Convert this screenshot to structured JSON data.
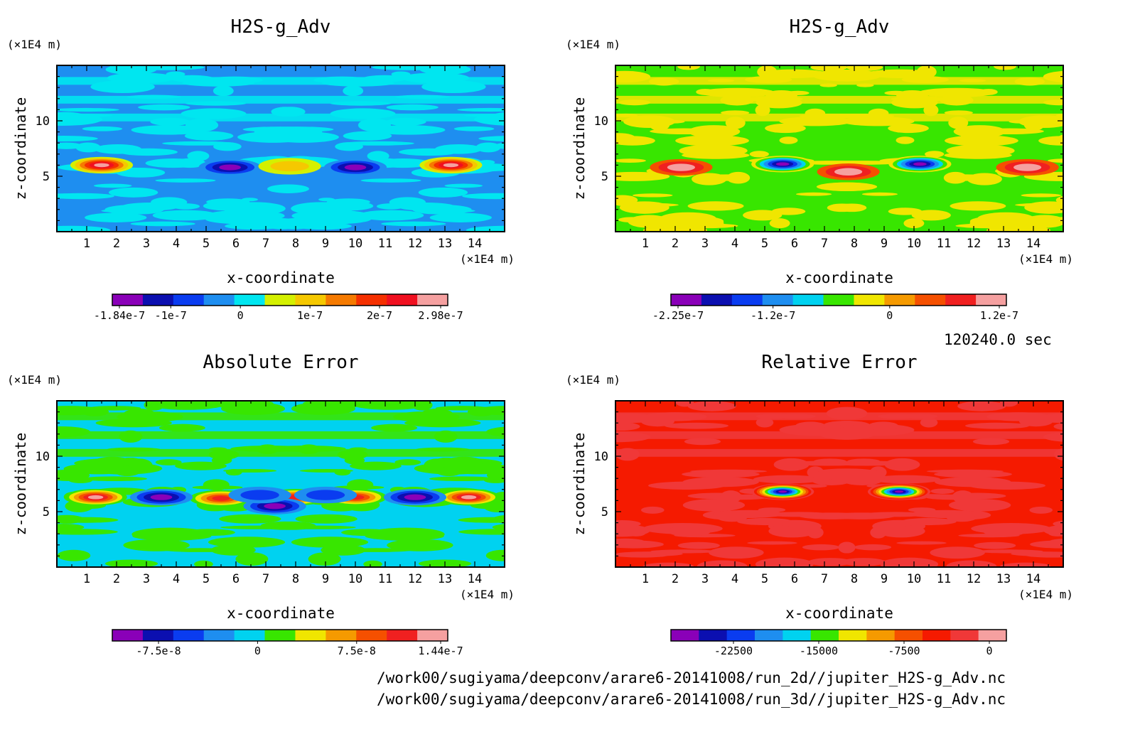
{
  "figure": {
    "time_label": "120240.0 sec",
    "files": [
      "/work00/sugiyama/deepconv/arare6-20141008/run_2d//jupiter_H2S-g_Adv.nc",
      "/work00/sugiyama/deepconv/arare6-20141008/run_3d//jupiter_H2S-g_Adv.nc"
    ]
  },
  "colors": {
    "palette": [
      "#8a00b8",
      "#0b0fb0",
      "#0a3cf0",
      "#1e8ef0",
      "#00e6f0",
      "#38e600",
      "#f0e600",
      "#f59a00",
      "#f54a00",
      "#f02020",
      "#f5a0a0"
    ]
  },
  "chart_data": [
    {
      "type": "heatmap",
      "title": "H2S-g_Adv",
      "xlabel": "x-coordinate",
      "ylabel": "z-coordinate",
      "x_unit": "(×1E4 m)",
      "y_unit": "(×1E4 m)",
      "xlim": [
        0,
        15
      ],
      "ylim": [
        0,
        15
      ],
      "x_ticks": [
        "1",
        "2",
        "3",
        "4",
        "5",
        "6",
        "7",
        "8",
        "9",
        "10",
        "11",
        "12",
        "13",
        "14"
      ],
      "y_ticks": [
        "5",
        "10"
      ],
      "colorbar_labels": [
        "-1.84e-7",
        "-1e-7",
        "0",
        "1e-7",
        "2e-7",
        "2.98e-7"
      ],
      "colorbar_range": [
        -1.84e-07,
        2.98e-07
      ],
      "colorbar_colors": [
        "#8a00b8",
        "#0b0fb0",
        "#0a3cf0",
        "#1e8ef0",
        "#00e6f0",
        "#d4f000",
        "#f5c800",
        "#f57a00",
        "#f53000",
        "#f01020",
        "#f5a0a0"
      ],
      "background_levels": [
        "#1e8ef0",
        "#00e6f0"
      ],
      "features": [
        {
          "x": 1.5,
          "z": 6.0,
          "value": 2.9e-07
        },
        {
          "x": 13.2,
          "z": 6.0,
          "value": 2.9e-07
        },
        {
          "x": 5.8,
          "z": 5.8,
          "value": -1.5e-07
        },
        {
          "x": 10.0,
          "z": 5.8,
          "value": -1.5e-07
        },
        {
          "x": 7.8,
          "z": 5.9,
          "value": 8e-08
        }
      ]
    },
    {
      "type": "heatmap",
      "title": "H2S-g_Adv",
      "xlabel": "x-coordinate",
      "ylabel": "z-coordinate",
      "x_unit": "(×1E4 m)",
      "y_unit": "(×1E4 m)",
      "xlim": [
        0,
        15
      ],
      "ylim": [
        0,
        15
      ],
      "x_ticks": [
        "1",
        "2",
        "3",
        "4",
        "5",
        "6",
        "7",
        "8",
        "9",
        "10",
        "11",
        "12",
        "13",
        "14"
      ],
      "y_ticks": [
        "5",
        "10"
      ],
      "colorbar_labels": [
        "-2.25e-7",
        "-1.2e-7",
        "0",
        "1.2e-7"
      ],
      "colorbar_range": [
        -2.25e-07,
        1.2e-07
      ],
      "colorbar_colors": [
        "#8a00b8",
        "#0b0fb0",
        "#0a3cf0",
        "#1e8ef0",
        "#00d2f0",
        "#38e600",
        "#f0e600",
        "#f59a00",
        "#f55000",
        "#f02020",
        "#f5a0a0"
      ],
      "background_levels": [
        "#38e600",
        "#f0e600"
      ],
      "features": [
        {
          "x": 2.2,
          "z": 5.8,
          "value": 1.3e-07
        },
        {
          "x": 13.8,
          "z": 5.8,
          "value": 1.3e-07
        },
        {
          "x": 7.8,
          "z": 5.4,
          "value": 1e-07
        },
        {
          "x": 5.6,
          "z": 6.1,
          "value": -2e-07
        },
        {
          "x": 10.2,
          "z": 6.1,
          "value": -2e-07
        }
      ]
    },
    {
      "type": "heatmap",
      "title": "Absolute Error",
      "xlabel": "x-coordinate",
      "ylabel": "z-coordinate",
      "x_unit": "(×1E4 m)",
      "y_unit": "(×1E4 m)",
      "xlim": [
        0,
        15
      ],
      "ylim": [
        0,
        15
      ],
      "x_ticks": [
        "1",
        "2",
        "3",
        "4",
        "5",
        "6",
        "7",
        "8",
        "9",
        "10",
        "11",
        "12",
        "13",
        "14"
      ],
      "y_ticks": [
        "5",
        "10"
      ],
      "colorbar_labels": [
        "-7.5e-8",
        "0",
        "7.5e-8",
        "1.44e-7"
      ],
      "colorbar_range": [
        -1.1e-07,
        1.44e-07
      ],
      "colorbar_colors": [
        "#8a00b8",
        "#0b0fb0",
        "#0a3cf0",
        "#1e8ef0",
        "#00d2f0",
        "#38e600",
        "#f0e600",
        "#f59a00",
        "#f55000",
        "#f02020",
        "#f5a0a0"
      ],
      "background_levels": [
        "#00d2f0",
        "#38e600"
      ],
      "features": [
        {
          "x": 1.3,
          "z": 6.3,
          "value": 1.4e-07
        },
        {
          "x": 5.5,
          "z": 6.2,
          "value": 1.1e-07
        },
        {
          "x": 8.0,
          "z": 6.3,
          "value": 1e-07
        },
        {
          "x": 10.0,
          "z": 6.3,
          "value": 1.2e-07
        },
        {
          "x": 13.8,
          "z": 6.3,
          "value": 1.4e-07
        },
        {
          "x": 3.5,
          "z": 6.3,
          "value": -9e-08
        },
        {
          "x": 12.0,
          "z": 6.3,
          "value": -9e-08
        },
        {
          "x": 7.3,
          "z": 5.5,
          "value": -9e-08
        },
        {
          "x": 6.8,
          "z": 6.5,
          "value": -6e-08
        },
        {
          "x": 9.0,
          "z": 6.5,
          "value": -6e-08
        }
      ]
    },
    {
      "type": "heatmap",
      "title": "Relative Error",
      "xlabel": "x-coordinate",
      "ylabel": "z-coordinate",
      "x_unit": "(×1E4 m)",
      "y_unit": "(×1E4 m)",
      "xlim": [
        0,
        15
      ],
      "ylim": [
        0,
        15
      ],
      "x_ticks": [
        "1",
        "2",
        "3",
        "4",
        "5",
        "6",
        "7",
        "8",
        "9",
        "10",
        "11",
        "12",
        "13",
        "14"
      ],
      "y_ticks": [
        "5",
        "10"
      ],
      "colorbar_labels": [
        "-22500",
        "-15000",
        "-7500",
        "0"
      ],
      "colorbar_range": [
        -28000,
        1500
      ],
      "colorbar_colors": [
        "#8a00b8",
        "#0b0fb0",
        "#0a3cf0",
        "#1e8ef0",
        "#00d2f0",
        "#38e600",
        "#f0e600",
        "#f59a00",
        "#f55000",
        "#f51a00",
        "#f03838",
        "#f5a0a0"
      ],
      "background_levels": [
        "#f51a00",
        "#f03838"
      ],
      "features": [
        {
          "x": 5.6,
          "z": 6.8,
          "value": -26000
        },
        {
          "x": 9.5,
          "z": 6.8,
          "value": -26000
        }
      ]
    }
  ]
}
